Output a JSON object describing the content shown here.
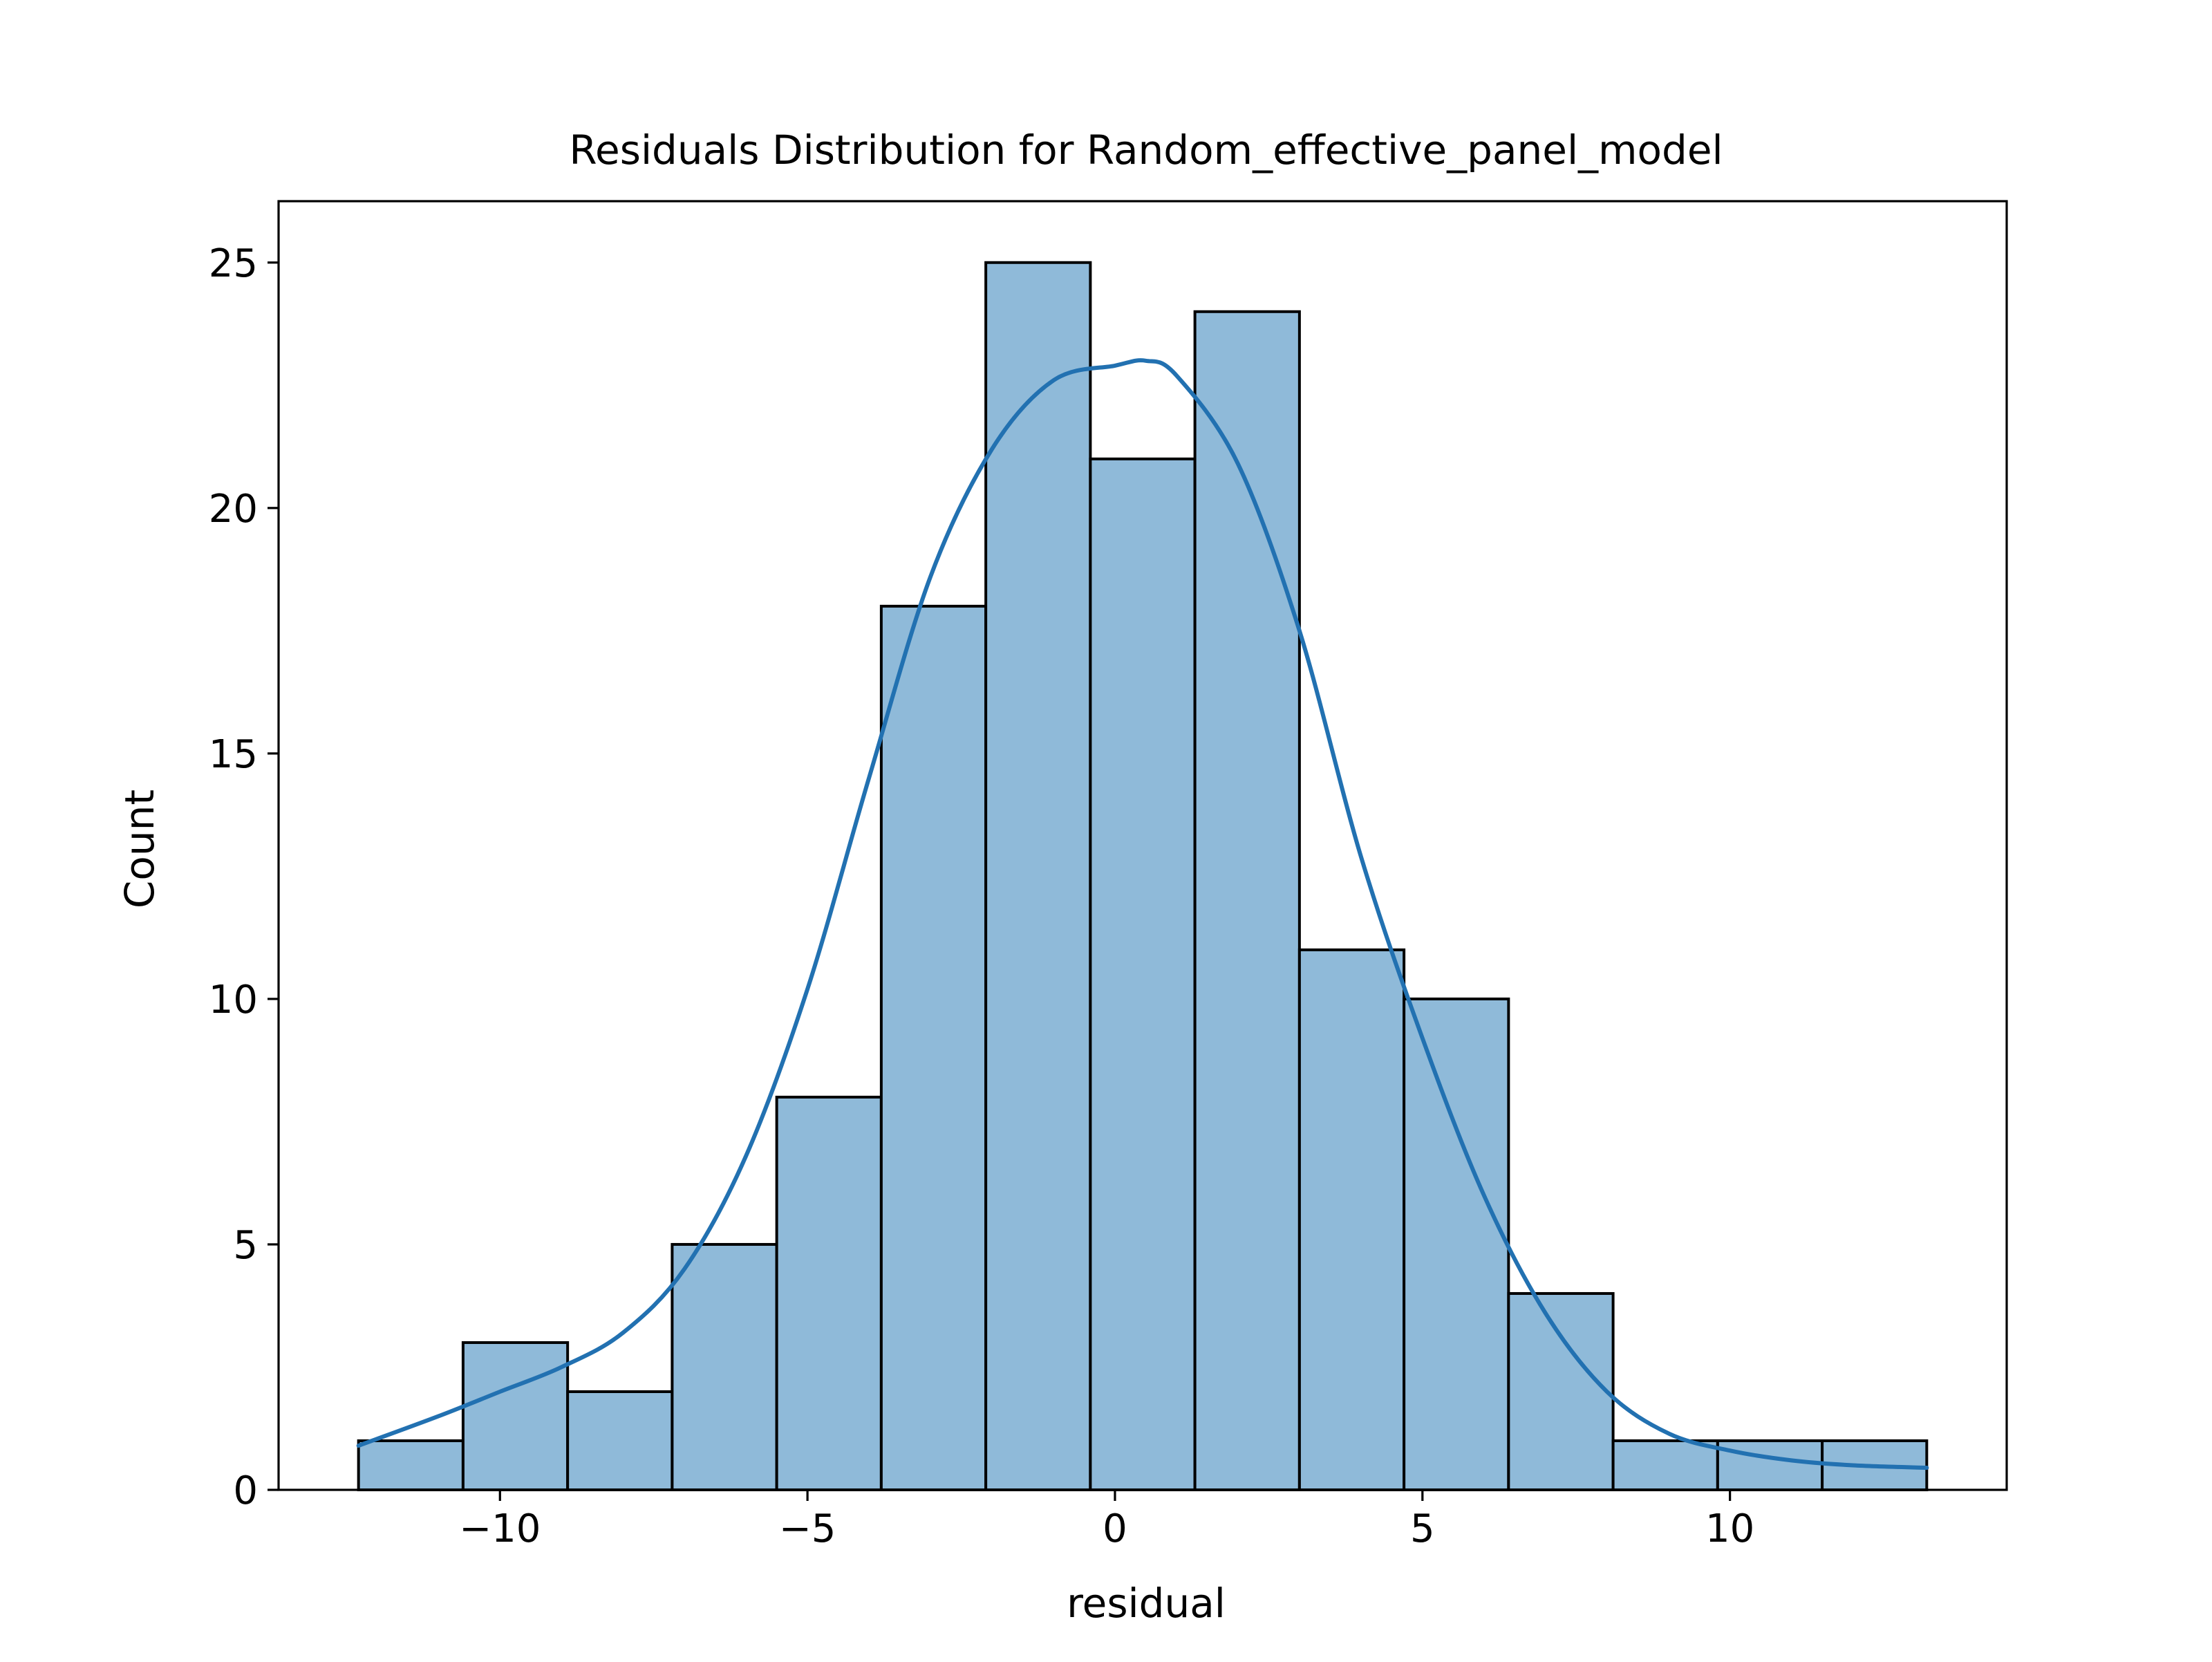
{
  "chart_data": {
    "type": "bar",
    "title": "Residuals Distribution for Random_effective_panel_model",
    "xlabel": "residual",
    "ylabel": "Count",
    "xlim": [
      -13.6,
      14.5
    ],
    "ylim": [
      0,
      26.25
    ],
    "xticks": [
      -10,
      -5,
      0,
      5,
      10
    ],
    "xtick_labels": [
      "−10",
      "−5",
      "0",
      "5",
      "10"
    ],
    "yticks": [
      0,
      5,
      10,
      15,
      20,
      25
    ],
    "ytick_labels": [
      "0",
      "5",
      "10",
      "15",
      "20",
      "25"
    ],
    "grid": false,
    "bins": [
      {
        "x0": -12.3,
        "x1": -10.6,
        "count": 1
      },
      {
        "x0": -10.6,
        "x1": -8.9,
        "count": 3
      },
      {
        "x0": -8.9,
        "x1": -7.2,
        "count": 2
      },
      {
        "x0": -7.2,
        "x1": -5.5,
        "count": 5
      },
      {
        "x0": -5.5,
        "x1": -3.8,
        "count": 8
      },
      {
        "x0": -3.8,
        "x1": -2.1,
        "count": 18
      },
      {
        "x0": -2.1,
        "x1": -0.4,
        "count": 25
      },
      {
        "x0": -0.4,
        "x1": 1.3,
        "count": 21
      },
      {
        "x0": 1.3,
        "x1": 3.0,
        "count": 24
      },
      {
        "x0": 3.0,
        "x1": 4.7,
        "count": 11
      },
      {
        "x0": 4.7,
        "x1": 6.4,
        "count": 10
      },
      {
        "x0": 6.4,
        "x1": 8.1,
        "count": 4
      },
      {
        "x0": 8.1,
        "x1": 9.8,
        "count": 1
      },
      {
        "x0": 9.8,
        "x1": 11.5,
        "count": 1
      },
      {
        "x0": 11.5,
        "x1": 13.2,
        "count": 1
      }
    ],
    "kde": {
      "x": [
        -12.3,
        -11.0,
        -10.0,
        -9.0,
        -8.0,
        -7.0,
        -6.0,
        -5.0,
        -4.0,
        -3.0,
        -2.0,
        -1.0,
        0.0,
        0.5,
        1.0,
        2.0,
        3.0,
        4.0,
        5.0,
        6.0,
        7.0,
        8.0,
        9.0,
        10.0,
        11.0,
        12.0,
        13.2
      ],
      "y": [
        0.9,
        1.5,
        2.0,
        2.5,
        3.2,
        4.5,
        6.8,
        10.2,
        14.5,
        18.6,
        21.2,
        22.6,
        22.9,
        23.0,
        22.7,
        20.9,
        17.5,
        12.9,
        9.2,
        6.0,
        3.6,
        2.0,
        1.15,
        0.8,
        0.6,
        0.5,
        0.45
      ]
    },
    "colors": {
      "bar_fill": "#8fbad9",
      "bar_edge": "#000000",
      "kde_line": "#2271b1",
      "axes": "#000000",
      "background": "#ffffff"
    }
  }
}
